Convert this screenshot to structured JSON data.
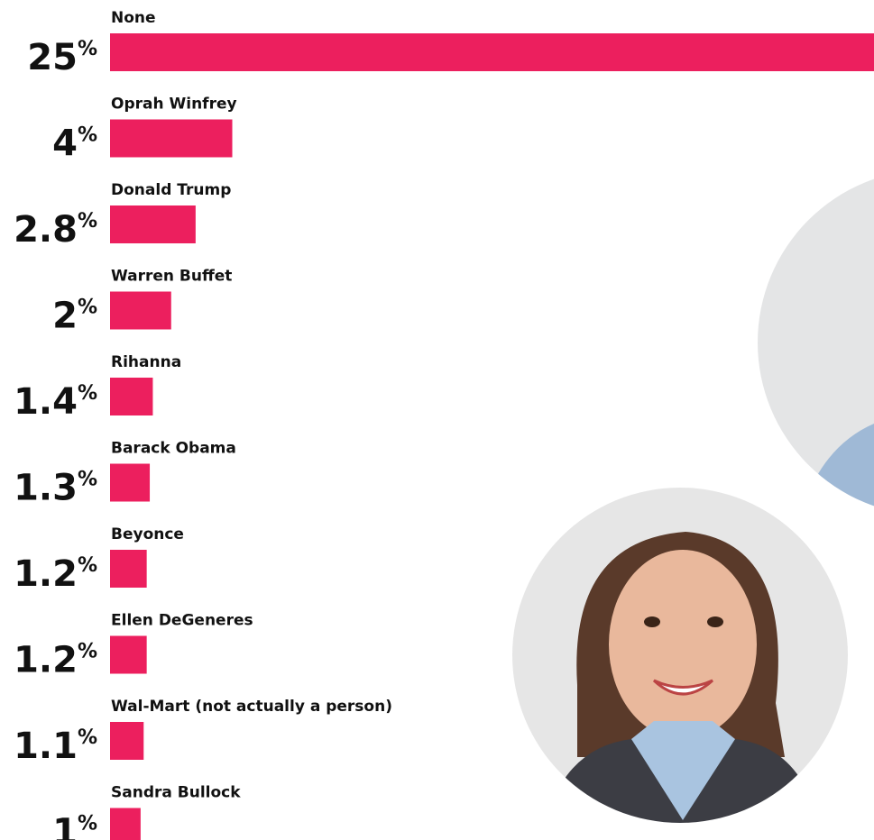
{
  "chart_data": {
    "type": "hbar",
    "categories": [
      "None",
      "Oprah Winfrey",
      "Donald Trump",
      "Warren Buffet",
      "Rihanna",
      "Barack Obama",
      "Beyonce",
      "Ellen DeGeneres",
      "Wal-Mart (not actually a person)",
      "Sandra Bullock"
    ],
    "values": [
      25,
      4,
      2.8,
      2,
      1.4,
      1.3,
      1.2,
      1.2,
      1.1,
      1
    ],
    "unit": "%",
    "color": "#ec1f5e",
    "xlim": [
      0,
      25
    ]
  }
}
